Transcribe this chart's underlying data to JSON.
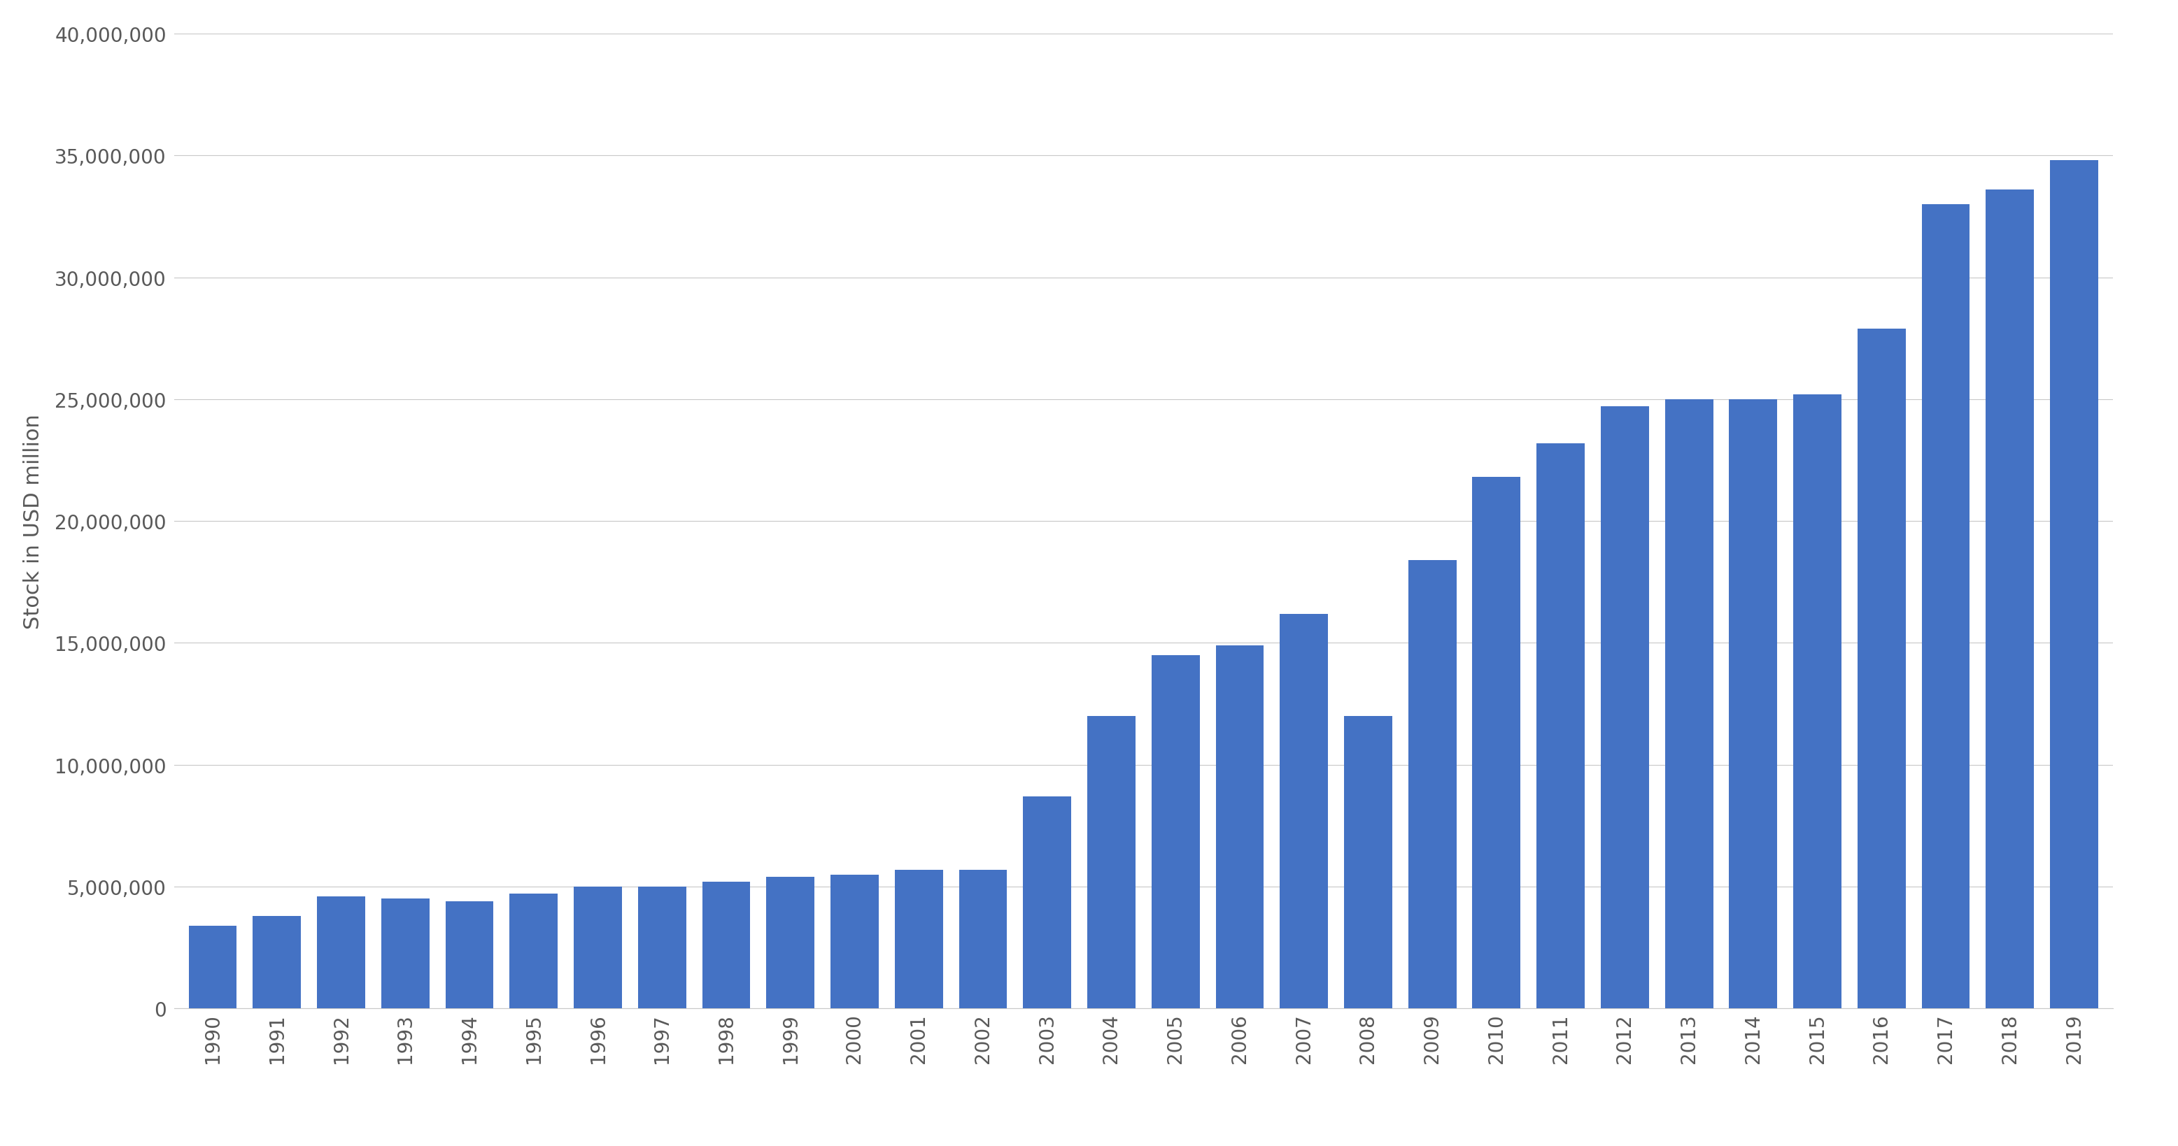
{
  "years": [
    1990,
    1991,
    1992,
    1993,
    1994,
    1995,
    1996,
    1997,
    1998,
    1999,
    2000,
    2001,
    2002,
    2003,
    2004,
    2005,
    2006,
    2007,
    2008,
    2009,
    2010,
    2011,
    2012,
    2013,
    2014,
    2015,
    2016,
    2017,
    2018,
    2019
  ],
  "values": [
    3400000,
    3800000,
    4600000,
    4500000,
    4400000,
    4700000,
    5000000,
    5000000,
    5200000,
    5400000,
    5500000,
    5700000,
    5700000,
    8700000,
    12000000,
    14500000,
    14900000,
    16200000,
    12000000,
    18400000,
    21800000,
    23200000,
    24700000,
    25000000,
    25000000,
    25200000,
    27900000,
    33000000,
    33600000,
    34800000
  ],
  "bar_color": "#4472C4",
  "ylabel": "Stock in USD million",
  "ylim": [
    0,
    40000000
  ],
  "yticks": [
    0,
    5000000,
    10000000,
    15000000,
    20000000,
    25000000,
    30000000,
    35000000,
    40000000
  ],
  "background_color": "#FFFFFF",
  "grid_color": "#C8C8C8",
  "tick_label_color": "#595959",
  "ylabel_color": "#595959",
  "bar_width": 0.75,
  "tick_fontsize": 20,
  "ylabel_fontsize": 22
}
